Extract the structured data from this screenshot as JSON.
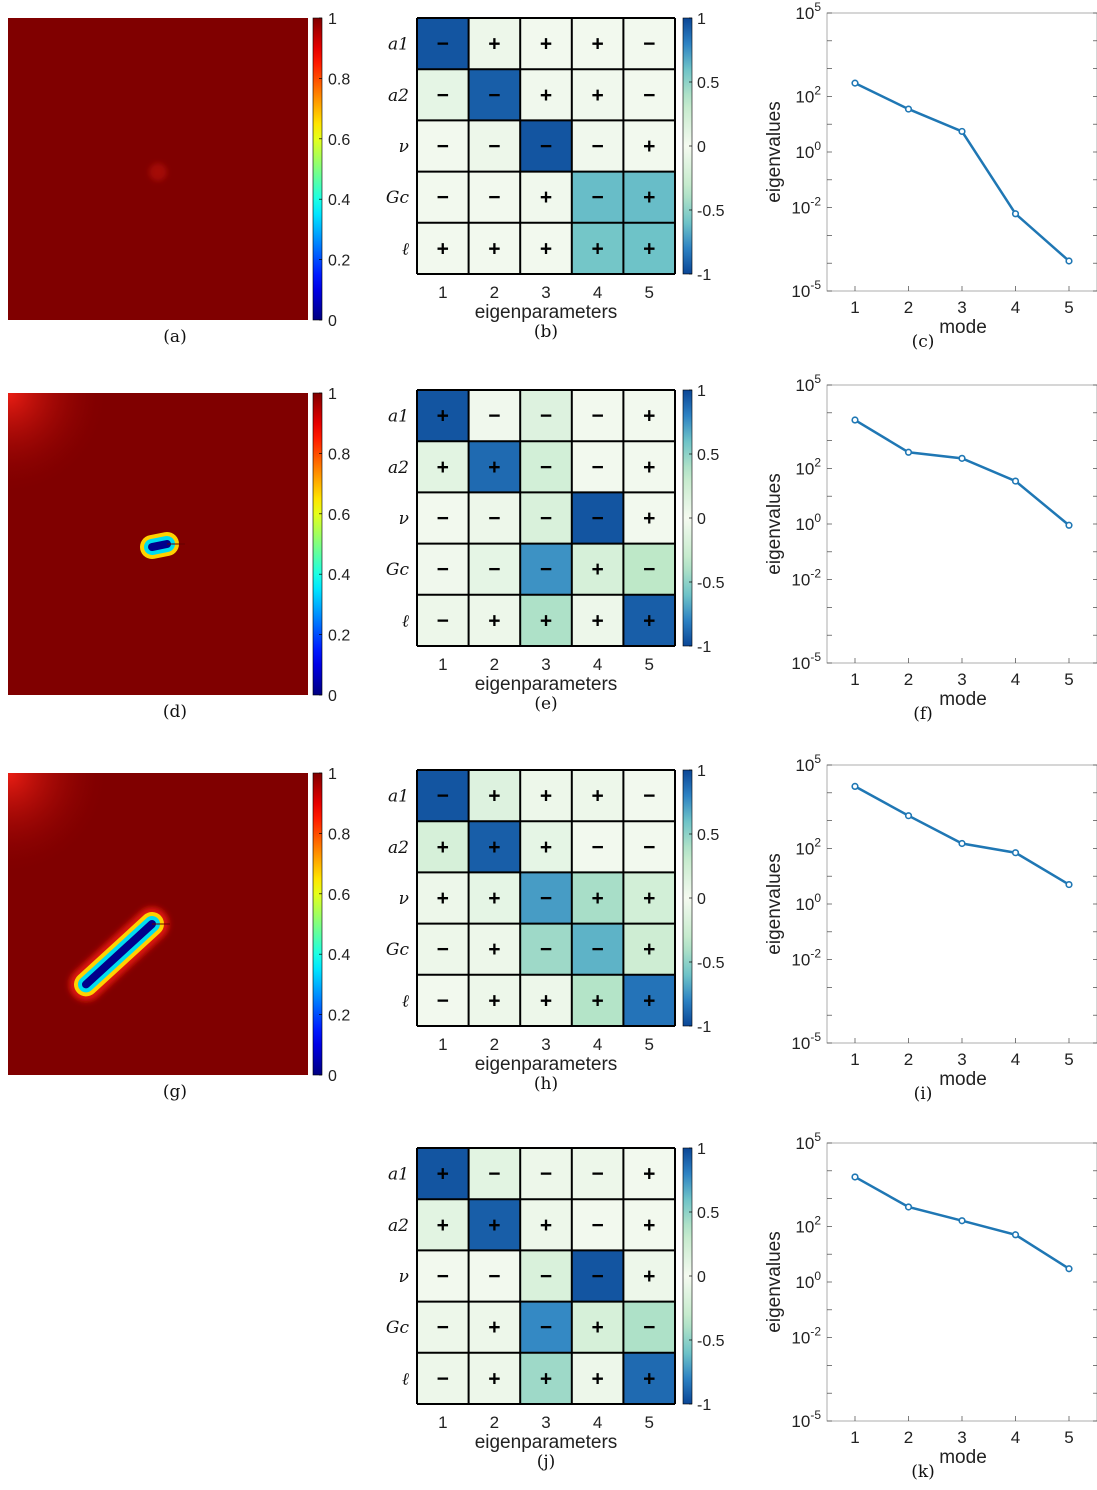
{
  "colors": {
    "damage_colormap": "jet",
    "heatmap_colormap": "blue-green-white",
    "line_color": "#1f77b4",
    "grid_color": "#000000"
  },
  "rows": [
    {
      "field": {
        "type": "heatmap",
        "label": "(a)",
        "colorbar_ticks": [
          "1",
          "0.8",
          "0.6",
          "0.4",
          "0.2",
          "0"
        ],
        "crack": {
          "present": false
        }
      },
      "matrix": {
        "label": "(b)",
        "chart_data": {
          "type": "heatmap",
          "xlabel": "eigenparameters",
          "x_ticks": [
            "1",
            "2",
            "3",
            "4",
            "5"
          ],
          "y_ticks": [
            "a1",
            "a2",
            "ν",
            "Gc",
            "ℓ"
          ],
          "colorbar_ticks": [
            "1",
            "0.5",
            "0",
            "-0.5",
            "-1"
          ],
          "signs": [
            [
              "−",
              "+",
              "+",
              "+",
              "−"
            ],
            [
              "−",
              "−",
              "+",
              "+",
              "−"
            ],
            [
              "−",
              "−",
              "−",
              "−",
              "+"
            ],
            [
              "−",
              "−",
              "+",
              "−",
              "+"
            ],
            [
              "+",
              "+",
              "+",
              "+",
              "+"
            ]
          ],
          "magnitudes": [
            [
              0.95,
              0.05,
              0.02,
              0.02,
              0.02
            ],
            [
              0.1,
              0.92,
              0.03,
              0.03,
              0.02
            ],
            [
              0.02,
              0.05,
              0.95,
              0.03,
              0.02
            ],
            [
              0.02,
              0.02,
              0.03,
              0.62,
              0.62
            ],
            [
              0.02,
              0.02,
              0.02,
              0.58,
              0.6
            ]
          ]
        }
      },
      "eig": {
        "label": "(c)",
        "chart_data": {
          "type": "line",
          "xlabel": "mode",
          "ylabel": "eigenvalues",
          "x": [
            1,
            2,
            3,
            4,
            5
          ],
          "y": [
            300,
            35,
            5.5,
            0.006,
            0.00012
          ],
          "y_scale": "log",
          "ylim": [
            1e-05,
            100000
          ]
        }
      }
    },
    {
      "field": {
        "type": "heatmap",
        "label": "(d)",
        "colorbar_ticks": [
          "1",
          "0.8",
          "0.6",
          "0.4",
          "0.2",
          "0"
        ],
        "crack": {
          "present": true,
          "start": [
            0.48,
            0.51
          ],
          "end": [
            0.53,
            0.5
          ]
        }
      },
      "matrix": {
        "label": "(e)",
        "chart_data": {
          "type": "heatmap",
          "xlabel": "eigenparameters",
          "x_ticks": [
            "1",
            "2",
            "3",
            "4",
            "5"
          ],
          "y_ticks": [
            "a1",
            "a2",
            "ν",
            "Gc",
            "ℓ"
          ],
          "colorbar_ticks": [
            "1",
            "0.5",
            "0",
            "-0.5",
            "-1"
          ],
          "signs": [
            [
              "+",
              "−",
              "−",
              "−",
              "+"
            ],
            [
              "+",
              "+",
              "−",
              "−",
              "+"
            ],
            [
              "−",
              "−",
              "−",
              "−",
              "+"
            ],
            [
              "−",
              "−",
              "−",
              "+",
              "−"
            ],
            [
              "−",
              "+",
              "+",
              "+",
              "+"
            ]
          ],
          "magnitudes": [
            [
              0.95,
              0.03,
              0.15,
              0.02,
              0.02
            ],
            [
              0.12,
              0.88,
              0.22,
              0.02,
              0.02
            ],
            [
              0.02,
              0.05,
              0.18,
              0.95,
              0.02
            ],
            [
              0.03,
              0.1,
              0.75,
              0.2,
              0.35
            ],
            [
              0.05,
              0.05,
              0.4,
              0.05,
              0.92
            ]
          ]
        }
      },
      "eig": {
        "label": "(f)",
        "chart_data": {
          "type": "line",
          "xlabel": "mode",
          "ylabel": "eigenvalues",
          "x": [
            1,
            2,
            3,
            4,
            5
          ],
          "y": [
            5500,
            380,
            230,
            35,
            0.9
          ],
          "y_scale": "log",
          "ylim": [
            1e-05,
            100000
          ]
        }
      }
    },
    {
      "field": {
        "type": "heatmap",
        "label": "(g)",
        "colorbar_ticks": [
          "1",
          "0.8",
          "0.6",
          "0.4",
          "0.2",
          "0"
        ],
        "crack": {
          "present": true,
          "start": [
            0.26,
            0.7
          ],
          "end": [
            0.48,
            0.5
          ]
        }
      },
      "matrix": {
        "label": "(h)",
        "chart_data": {
          "type": "heatmap",
          "xlabel": "eigenparameters",
          "x_ticks": [
            "1",
            "2",
            "3",
            "4",
            "5"
          ],
          "y_ticks": [
            "a1",
            "a2",
            "ν",
            "Gc",
            "ℓ"
          ],
          "colorbar_ticks": [
            "1",
            "0.5",
            "0",
            "-0.5",
            "-1"
          ],
          "signs": [
            [
              "−",
              "+",
              "+",
              "+",
              "−"
            ],
            [
              "+",
              "+",
              "+",
              "−",
              "−"
            ],
            [
              "+",
              "+",
              "−",
              "+",
              "+"
            ],
            [
              "−",
              "+",
              "−",
              "−",
              "+"
            ],
            [
              "−",
              "+",
              "+",
              "+",
              "+"
            ]
          ],
          "magnitudes": [
            [
              0.95,
              0.15,
              0.05,
              0.05,
              0.02
            ],
            [
              0.2,
              0.92,
              0.1,
              0.02,
              0.02
            ],
            [
              0.05,
              0.1,
              0.72,
              0.42,
              0.22
            ],
            [
              0.05,
              0.05,
              0.45,
              0.65,
              0.25
            ],
            [
              0.02,
              0.05,
              0.05,
              0.38,
              0.85
            ]
          ]
        }
      },
      "eig": {
        "label": "(i)",
        "chart_data": {
          "type": "line",
          "xlabel": "mode",
          "ylabel": "eigenvalues",
          "x": [
            1,
            2,
            3,
            4,
            5
          ],
          "y": [
            17000,
            1500,
            150,
            70,
            5
          ],
          "y_scale": "log",
          "ylim": [
            1e-05,
            100000
          ]
        }
      }
    },
    {
      "field": null,
      "matrix": {
        "label": "(j)",
        "chart_data": {
          "type": "heatmap",
          "xlabel": "eigenparameters",
          "x_ticks": [
            "1",
            "2",
            "3",
            "4",
            "5"
          ],
          "y_ticks": [
            "a1",
            "a2",
            "ν",
            "Gc",
            "ℓ"
          ],
          "colorbar_ticks": [
            "1",
            "0.5",
            "0",
            "-0.5",
            "-1"
          ],
          "signs": [
            [
              "+",
              "−",
              "−",
              "−",
              "+"
            ],
            [
              "+",
              "+",
              "+",
              "−",
              "+"
            ],
            [
              "−",
              "−",
              "−",
              "−",
              "+"
            ],
            [
              "−",
              "+",
              "−",
              "+",
              "−"
            ],
            [
              "−",
              "+",
              "+",
              "+",
              "+"
            ]
          ],
          "magnitudes": [
            [
              0.95,
              0.12,
              0.05,
              0.05,
              0.02
            ],
            [
              0.12,
              0.92,
              0.05,
              0.02,
              0.02
            ],
            [
              0.02,
              0.02,
              0.18,
              0.95,
              0.05
            ],
            [
              0.05,
              0.05,
              0.78,
              0.2,
              0.4
            ],
            [
              0.05,
              0.05,
              0.45,
              0.05,
              0.88
            ]
          ]
        }
      },
      "eig": {
        "label": "(k)",
        "chart_data": {
          "type": "line",
          "xlabel": "mode",
          "ylabel": "eigenvalues",
          "x": [
            1,
            2,
            3,
            4,
            5
          ],
          "y": [
            6000,
            500,
            160,
            50,
            3
          ],
          "y_scale": "log",
          "ylim": [
            1e-05,
            100000
          ]
        }
      }
    }
  ]
}
